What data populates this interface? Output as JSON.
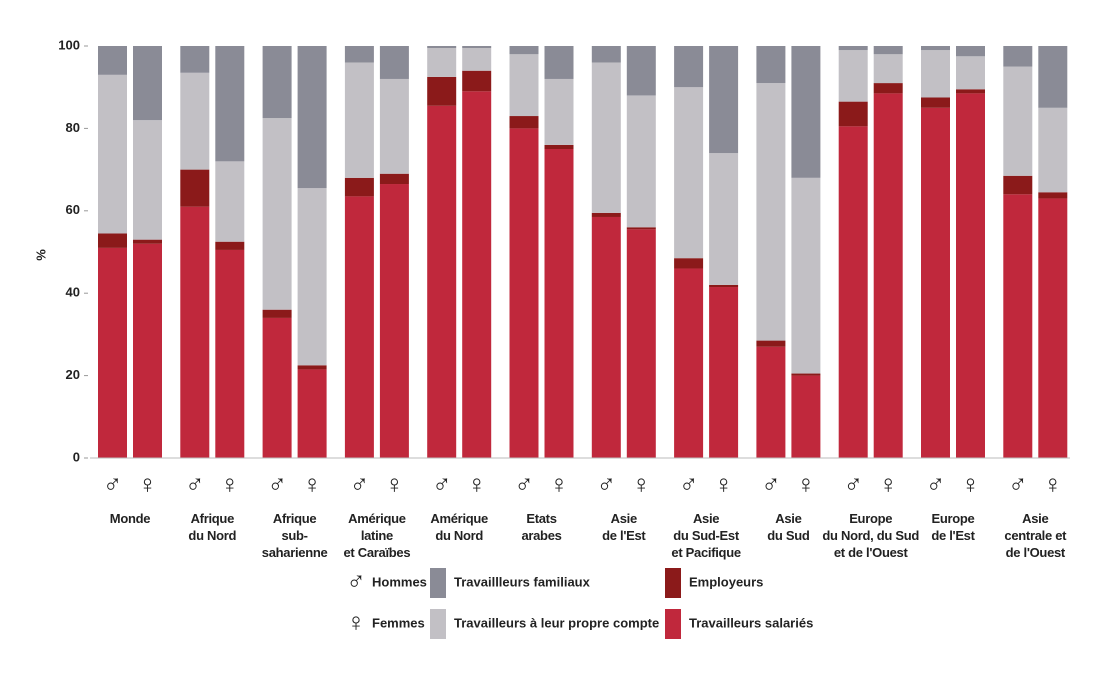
{
  "chart_data": {
    "type": "stacked-grouped-bar",
    "y_label": "%",
    "ylim": [
      0,
      100
    ],
    "yticks": [
      0,
      20,
      40,
      60,
      80,
      100
    ],
    "groups": [
      "♂",
      "♀"
    ],
    "group_names": [
      "Hommes",
      "Femmes"
    ],
    "categories": [
      "Monde",
      "Afrique\ndu Nord",
      "Afrique\nsub-\nsaharienne",
      "Amérique\nlatine\net Caraïbes",
      "Amérique\ndu Nord",
      "Etats\narabes",
      "Asie\nde l'Est",
      "Asie\ndu Sud-Est\net Pacifique",
      "Asie\ndu Sud",
      "Europe\ndu Nord, du Sud\net de l'Ouest",
      "Europe\nde l'Est",
      "Asie\ncentrale et\nde l'Ouest"
    ],
    "series": [
      {
        "name": "Travailleurs salariés",
        "color": "#c0283c",
        "values": [
          [
            51,
            52
          ],
          [
            61,
            50.5
          ],
          [
            34,
            21.5
          ],
          [
            63.5,
            66.5
          ],
          [
            85.5,
            89
          ],
          [
            80,
            75
          ],
          [
            58.5,
            55.5
          ],
          [
            46,
            41.5
          ],
          [
            27,
            20
          ],
          [
            80.5,
            88.5
          ],
          [
            85,
            88.5
          ],
          [
            64,
            63
          ]
        ]
      },
      {
        "name": "Employeurs",
        "color": "#8b1a1a",
        "values": [
          [
            3.5,
            1
          ],
          [
            9,
            2
          ],
          [
            2,
            1
          ],
          [
            4.5,
            2.5
          ],
          [
            7,
            5
          ],
          [
            3,
            1
          ],
          [
            1,
            0.5
          ],
          [
            2.5,
            0.5
          ],
          [
            1.5,
            0.5
          ],
          [
            6,
            2.5
          ],
          [
            2.5,
            1
          ],
          [
            4.5,
            1.5
          ]
        ]
      },
      {
        "name": "Travailleurs à leur propre compte",
        "color": "#c2c0c5",
        "values": [
          [
            38.5,
            29
          ],
          [
            23.5,
            19.5
          ],
          [
            46.5,
            43
          ],
          [
            28,
            23
          ],
          [
            7,
            5.5
          ],
          [
            15,
            16
          ],
          [
            36.5,
            32
          ],
          [
            41.5,
            32
          ],
          [
            62.5,
            47.5
          ],
          [
            12.5,
            7
          ],
          [
            11.5,
            8
          ],
          [
            26.5,
            20.5
          ]
        ]
      },
      {
        "name": "Travaillleurs familiaux",
        "color": "#8a8b96",
        "values": [
          [
            7,
            18
          ],
          [
            6.5,
            28
          ],
          [
            17.5,
            34.5
          ],
          [
            4,
            8
          ],
          [
            0.5,
            0.5
          ],
          [
            2,
            8
          ],
          [
            4,
            12
          ],
          [
            10,
            26
          ],
          [
            9,
            32
          ],
          [
            1,
            2
          ],
          [
            1,
            2.5
          ],
          [
            5,
            15
          ]
        ]
      }
    ]
  }
}
